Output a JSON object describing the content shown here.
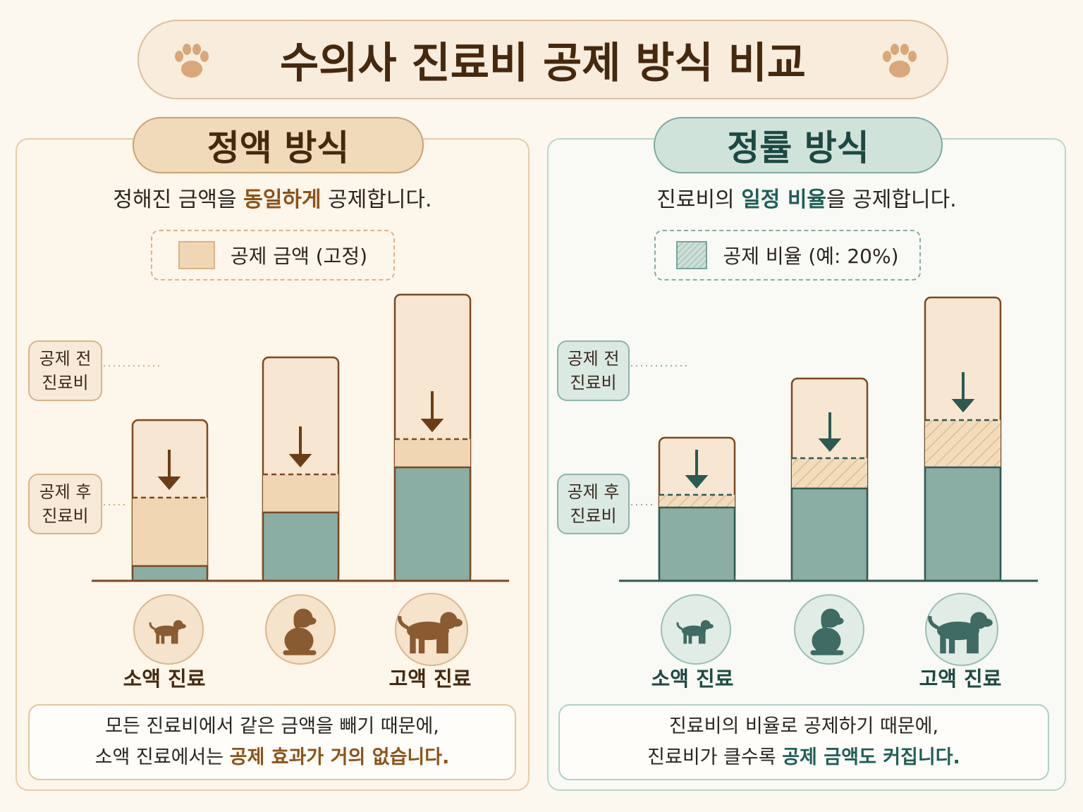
{
  "header": {
    "title": "수의사 진료비 공제 방식 비교"
  },
  "panels": [
    {
      "heading": "정액 방식",
      "description": [
        "정해진 금액을 ",
        "동일하게",
        " 공제합니다."
      ],
      "legend": "공제 금액 (고정)",
      "before_label": [
        "공제 전",
        "진료비"
      ],
      "after_label": [
        "공제 후",
        "진료비"
      ],
      "categories": [
        "소액 진료",
        "고액 진료"
      ],
      "note": {
        "line1": "모든 진료비에서 같은 금액을 빼기 때문에,",
        "line2": [
          "소액 진료에서는 ",
          "공제 효과가 거의 없습니다."
        ]
      }
    },
    {
      "heading": "정률 방식",
      "description": [
        "진료비의 ",
        "일정 비율",
        "을 공제합니다."
      ],
      "legend": "공제 비율 (예: 20%)",
      "before_label": [
        "공제 전",
        "진료비"
      ],
      "after_label": [
        "공제 후",
        "진료비"
      ],
      "categories": [
        "소액 진료",
        "고액 진료"
      ],
      "note": {
        "line1": "진료비의 비율로 공제하기 때문에,",
        "line2": [
          "진료비가 클수록 ",
          "공제 금액도 커집니다."
        ]
      }
    }
  ]
}
